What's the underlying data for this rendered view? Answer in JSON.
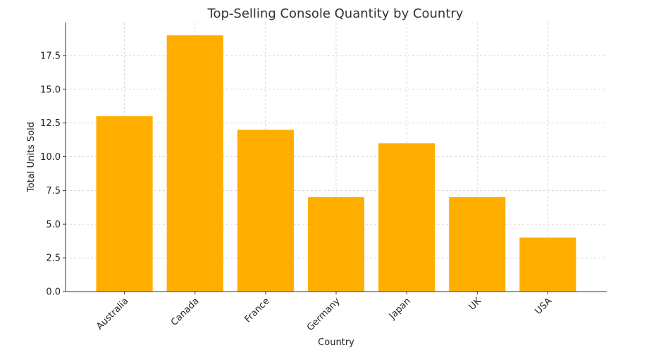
{
  "chart_data": {
    "type": "bar",
    "title": "Top-Selling Console Quantity by Country",
    "xlabel": "Country",
    "ylabel": "Total Units Sold",
    "categories": [
      "Australia",
      "Canada",
      "France",
      "Germany",
      "Japan",
      "UK",
      "USA"
    ],
    "values": [
      13,
      19,
      12,
      7,
      11,
      7,
      4
    ],
    "ylim": [
      0,
      19.95
    ],
    "yticks": [
      "0.0",
      "2.5",
      "5.0",
      "7.5",
      "10.0",
      "12.5",
      "15.0",
      "17.5"
    ],
    "grid": true,
    "bar_color": "#FFAE00"
  }
}
